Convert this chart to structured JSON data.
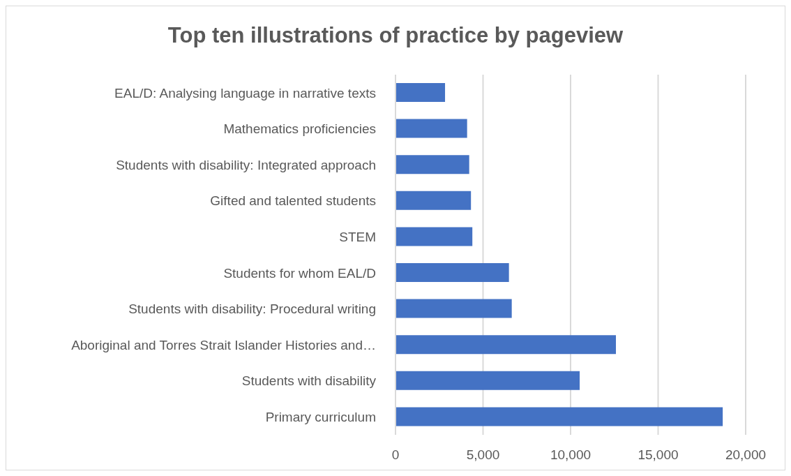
{
  "chart_data": {
    "type": "bar",
    "orientation": "horizontal",
    "title": "Top ten illustrations of practice by pageview",
    "categories": [
      "EAL/D: Analysing language in narrative texts",
      "Mathematics proficiencies",
      "Students with disability: Integrated approach",
      "Gifted and talented students",
      "STEM ",
      "Students for whom EAL/D ",
      "Students with disability: Procedural writing",
      "Aboriginal and Torres Strait Islander Histories and…",
      "Students with disability",
      "Primary curriculum"
    ],
    "values": [
      2830,
      4090,
      4210,
      4310,
      4390,
      6480,
      6640,
      12590,
      10520,
      18690
    ],
    "color": "#4472c4",
    "xlim": [
      0,
      20000
    ],
    "xticks": [
      {
        "value": 0,
        "label": "0"
      },
      {
        "value": 5000,
        "label": "5,000"
      },
      {
        "value": 10000,
        "label": "10,000"
      },
      {
        "value": 15000,
        "label": "15,000"
      },
      {
        "value": 20000,
        "label": "20,000"
      }
    ],
    "grid": "x"
  }
}
